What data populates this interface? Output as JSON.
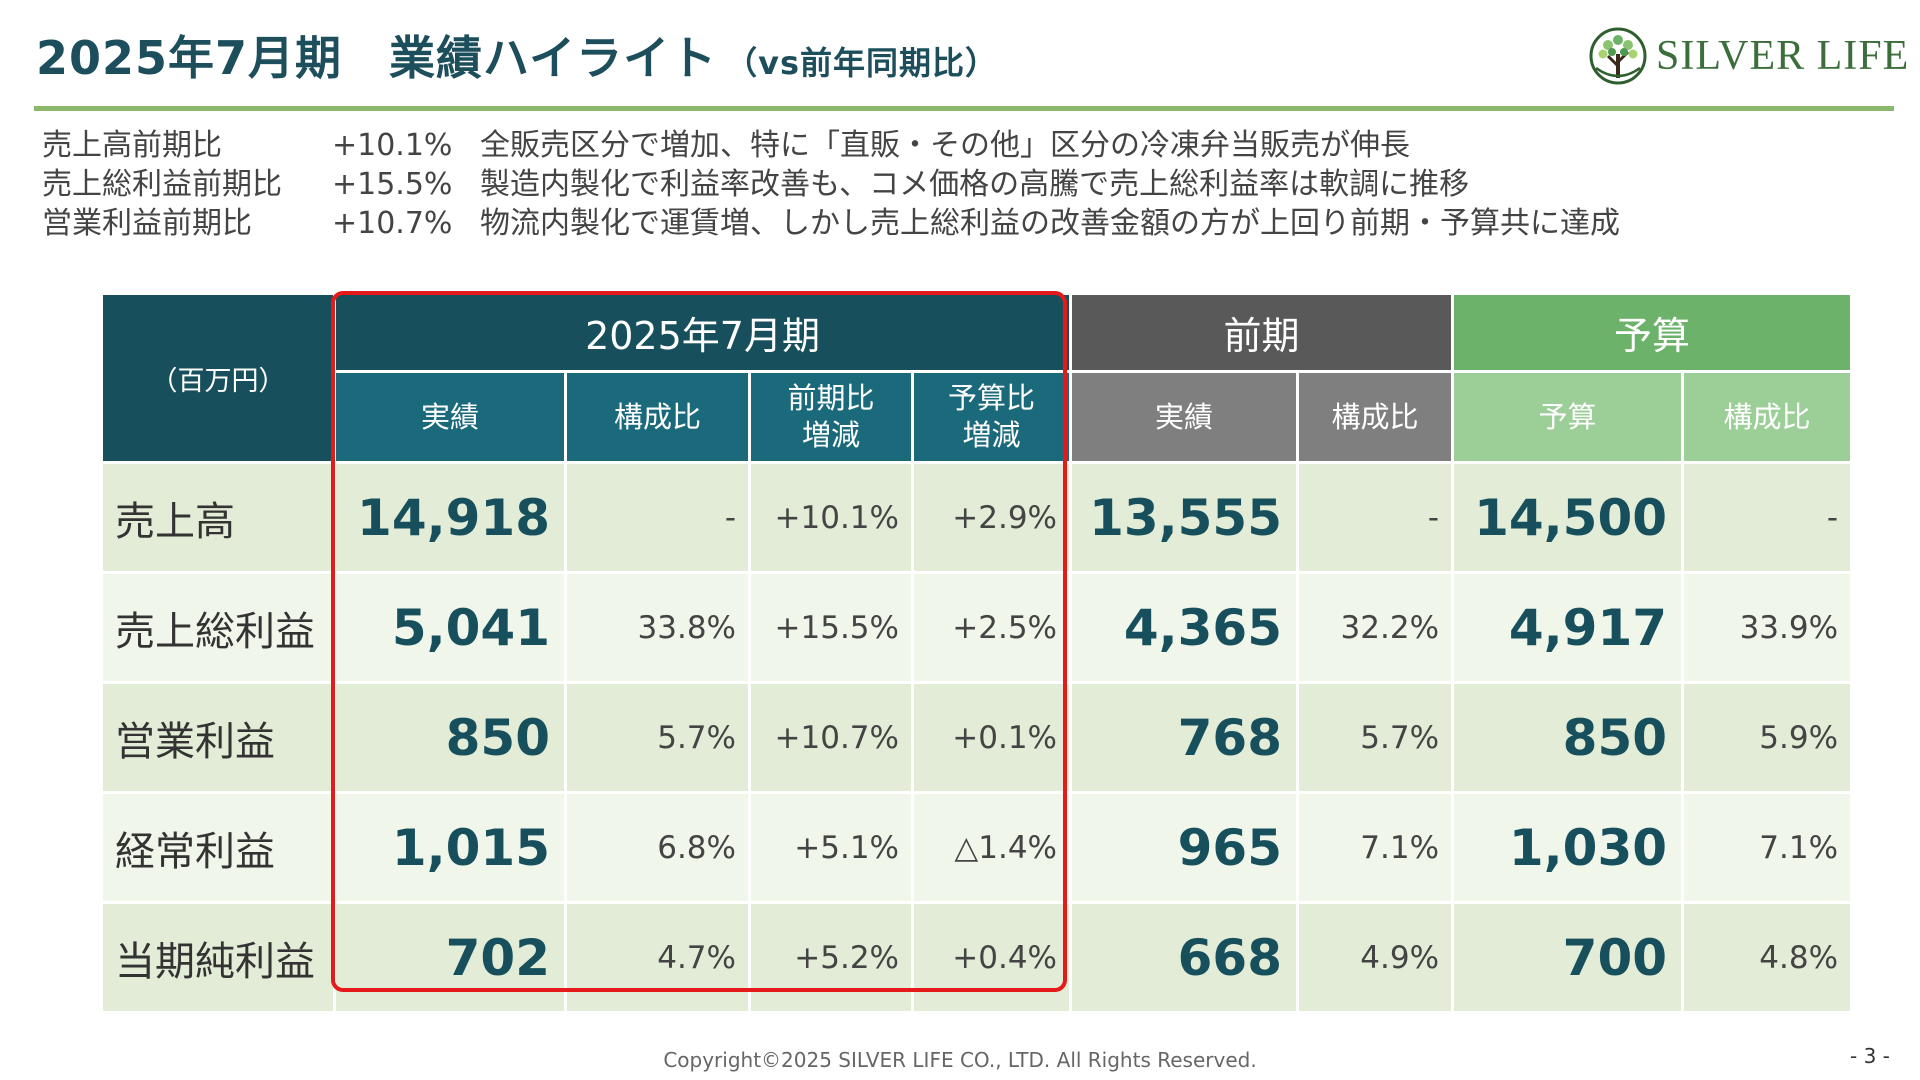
{
  "header": {
    "title": "2025年7月期　業績ハイライト",
    "title_sub": "（vs前年同期比）",
    "logo_text": "SILVER LIFE"
  },
  "summary": [
    {
      "label": "売上高前期比",
      "value": "+10.1%",
      "text": "全販売区分で増加、特に「直販・その他」区分の冷凍弁当販売が伸長"
    },
    {
      "label": "売上総利益前期比",
      "value": "+15.5%",
      "text": "製造内製化で利益率改善も、コメ価格の高騰で売上総利益率は軟調に推移"
    },
    {
      "label": "営業利益前期比",
      "value": "+10.7%",
      "text": "物流内製化で運賃増、しかし売上総利益の改善金額の方が上回り前期・予算共に達成"
    }
  ],
  "table": {
    "unit": "（百万円）",
    "groups": {
      "current": "2025年7月期",
      "previous": "前期",
      "budget": "予算"
    },
    "columns": {
      "actual": "実績",
      "ratio": "構成比",
      "yoy_1": "前期比",
      "yoy_2": "増減",
      "vs_budget_1": "予算比",
      "vs_budget_2": "増減",
      "prev_actual": "実績",
      "prev_ratio": "構成比",
      "budget": "予算",
      "budget_ratio": "構成比"
    },
    "rows": [
      {
        "label": "売上高",
        "actual": "14,918",
        "ratio": "-",
        "yoy": "+10.1%",
        "vs_budget": "+2.9%",
        "prev": "13,555",
        "prev_ratio": "-",
        "budget": "14,500",
        "budget_ratio": "-"
      },
      {
        "label": "売上総利益",
        "actual": "5,041",
        "ratio": "33.8%",
        "yoy": "+15.5%",
        "vs_budget": "+2.5%",
        "prev": "4,365",
        "prev_ratio": "32.2%",
        "budget": "4,917",
        "budget_ratio": "33.9%"
      },
      {
        "label": "営業利益",
        "actual": "850",
        "ratio": "5.7%",
        "yoy": "+10.7%",
        "vs_budget": "+0.1%",
        "prev": "768",
        "prev_ratio": "5.7%",
        "budget": "850",
        "budget_ratio": "5.9%"
      },
      {
        "label": "経常利益",
        "actual": "1,015",
        "ratio": "6.8%",
        "yoy": "+5.1%",
        "vs_budget": "△1.4%",
        "prev": "965",
        "prev_ratio": "7.1%",
        "budget": "1,030",
        "budget_ratio": "7.1%"
      },
      {
        "label": "当期純利益",
        "actual": "702",
        "ratio": "4.7%",
        "yoy": "+5.2%",
        "vs_budget": "+0.4%",
        "prev": "668",
        "prev_ratio": "4.9%",
        "budget": "700",
        "budget_ratio": "4.8%"
      }
    ]
  },
  "footer": {
    "copyright": "Copyright©2025 SILVER LIFE CO., LTD.  All Rights Reserved.",
    "page": "- 3 -"
  },
  "colors": {
    "title": "#1d4e5c",
    "rule": "#8ab86d",
    "current_header": "#17505c",
    "current_subheader": "#1a6a7c",
    "previous_header": "#595959",
    "previous_subheader": "#7f7f7f",
    "budget_header": "#6db26a",
    "budget_subheader": "#9ccf98",
    "row_odd": "#e2ecd6",
    "row_even": "#f1f6eb",
    "highlight_border": "#e51a1a"
  },
  "icons": {
    "logo": "tree-logo-icon"
  }
}
